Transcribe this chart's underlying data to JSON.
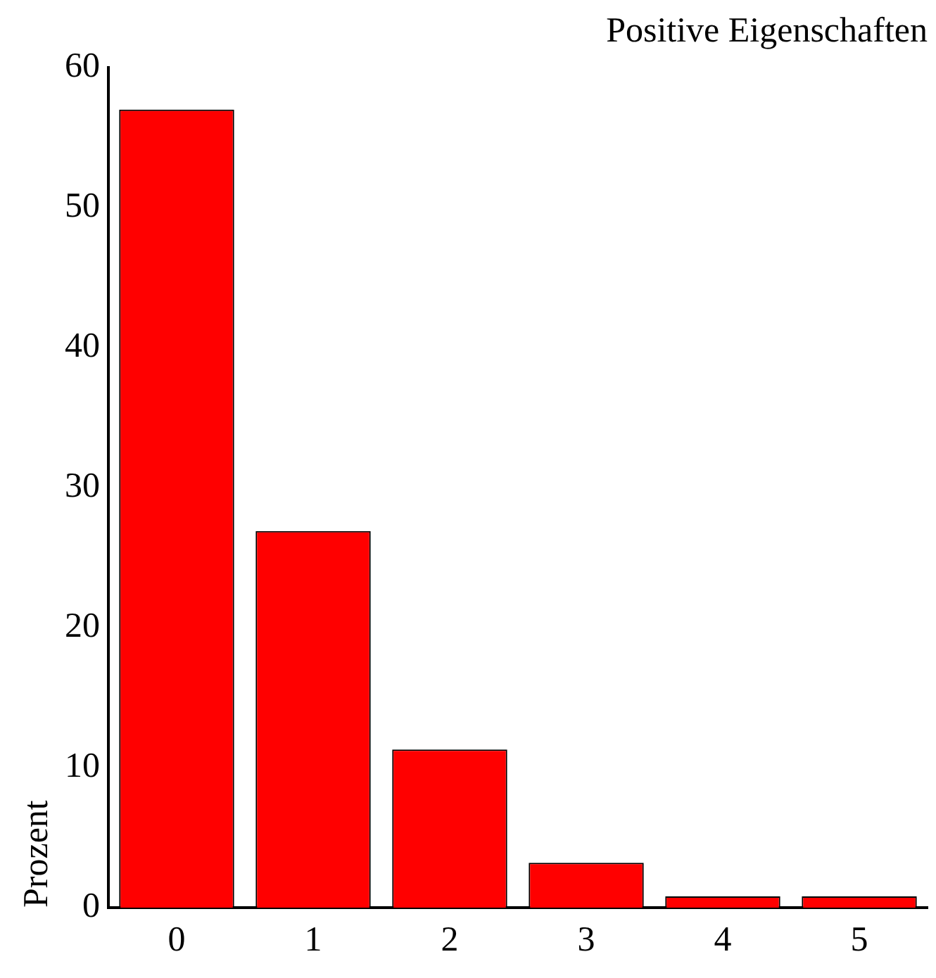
{
  "chart_data": {
    "type": "bar",
    "title": "Positive Eigenschaften",
    "ylabel": "Prozent",
    "categories": [
      "0",
      "1",
      "2",
      "3",
      "4",
      "5"
    ],
    "values": [
      57,
      26.9,
      11.3,
      3.2,
      0.8,
      0.8
    ],
    "color": "#ff0000",
    "ylim": [
      0,
      60
    ],
    "yticks": [
      0,
      10,
      20,
      30,
      40,
      50,
      60
    ],
    "grid": false,
    "legend": false
  }
}
